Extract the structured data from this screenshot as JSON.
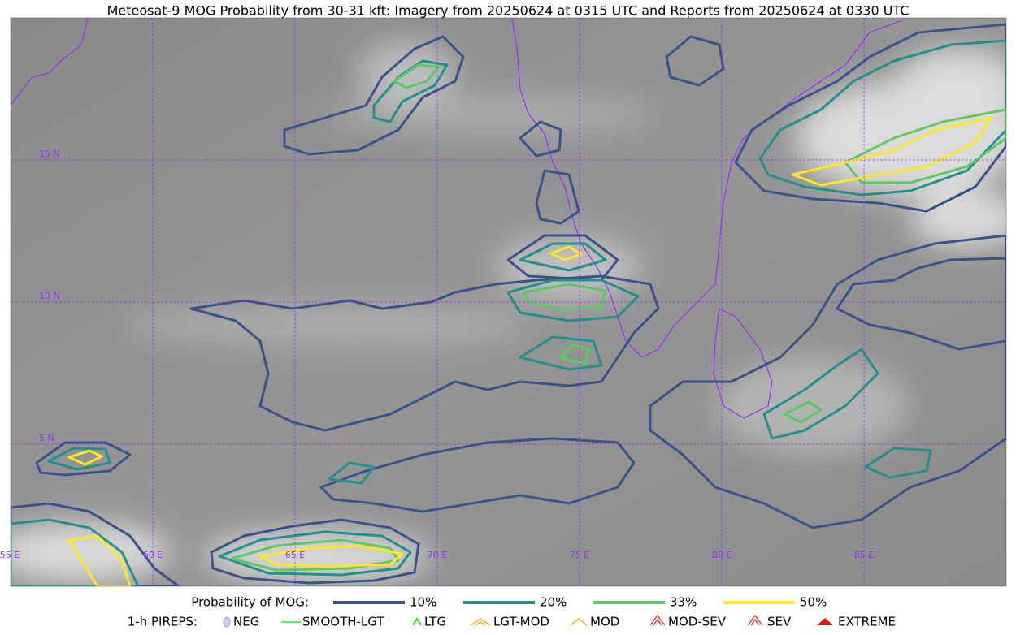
{
  "header": {
    "title": "Meteosat-9 MOG Probability from 30-31 kft: Imagery from 20250624 at 0315 UTC and Reports from 20250624 at 0330 UTC"
  },
  "map": {
    "lon_labels": [
      "55 E",
      "60 E",
      "65 E",
      "70 E",
      "75 E",
      "80 E",
      "85 E"
    ],
    "lat_labels": [
      "15 N",
      "10 N",
      "5 N"
    ]
  },
  "legend": {
    "probability": {
      "title": "Probability of MOG:",
      "items": [
        {
          "label": "10%",
          "color": "#3b528b"
        },
        {
          "label": "20%",
          "color": "#21918c"
        },
        {
          "label": "33%",
          "color": "#5ec962"
        },
        {
          "label": "50%",
          "color": "#fde725"
        }
      ]
    },
    "pireps": {
      "title": "1-h PIREPS:",
      "items": [
        "NEG",
        "SMOOTH-LGT",
        "LTG",
        "LGT-MOD",
        "MOD",
        "MOD-SEV",
        "SEV",
        "EXTREME"
      ]
    }
  }
}
